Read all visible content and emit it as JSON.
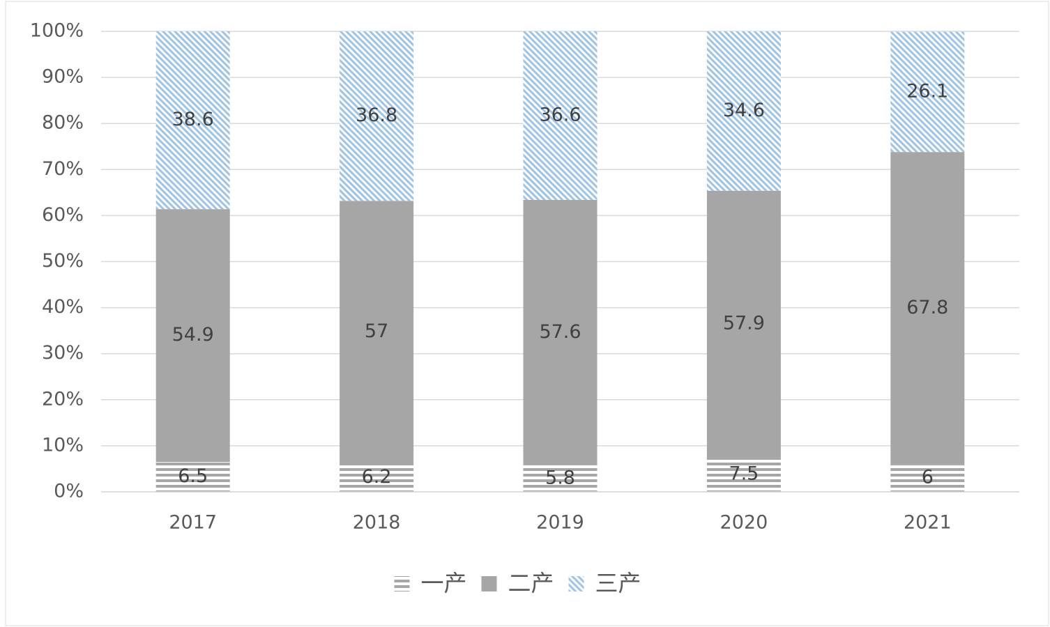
{
  "chart_data": {
    "type": "stacked-bar",
    "categories": [
      "2017",
      "2018",
      "2019",
      "2020",
      "2021"
    ],
    "series": [
      {
        "name": "一产",
        "color": "#a6a6a6",
        "pattern": "horizontal",
        "values": [
          6.5,
          6.2,
          5.8,
          7.5,
          6
        ]
      },
      {
        "name": "二产",
        "color": "#a6a6a6",
        "pattern": "solid",
        "values": [
          54.9,
          57,
          57.6,
          57.9,
          67.8
        ]
      },
      {
        "name": "三产",
        "color": "#9dc3e6",
        "pattern": "diagonal",
        "values": [
          38.6,
          36.8,
          36.6,
          34.6,
          26.1
        ]
      }
    ],
    "ylim": [
      0,
      100
    ],
    "yticks": [
      {
        "value": 0,
        "label": "0%"
      },
      {
        "value": 10,
        "label": "10%"
      },
      {
        "value": 20,
        "label": "20%"
      },
      {
        "value": 30,
        "label": "30%"
      },
      {
        "value": 40,
        "label": "40%"
      },
      {
        "value": 50,
        "label": "50%"
      },
      {
        "value": 60,
        "label": "60%"
      },
      {
        "value": 70,
        "label": "70%"
      },
      {
        "value": 80,
        "label": "80%"
      },
      {
        "value": 90,
        "label": "90%"
      },
      {
        "value": 100,
        "label": "100%"
      }
    ],
    "grid": true,
    "legend": "bottom"
  }
}
